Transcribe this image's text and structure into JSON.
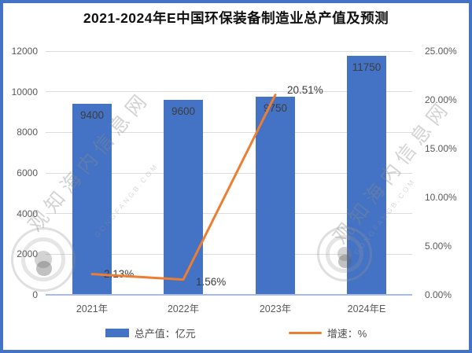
{
  "watermark": {
    "text": "观知海内信息网",
    "subtext": "GONGFANGB.COM"
  },
  "frame_color": "#4472C4",
  "chart_data": {
    "type": "bar+line combo",
    "title": "2021-2024年E中国环保装备制造业总产值及预测",
    "categories": [
      "2021年",
      "2022年",
      "2023年",
      "2024年E"
    ],
    "series": [
      {
        "name": "总产值：亿元",
        "type": "bar",
        "axis": "left",
        "color": "#4472C4",
        "values": [
          9400,
          9600,
          9750,
          11750
        ],
        "labels": [
          "9400",
          "9600",
          "9750",
          "11750"
        ]
      },
      {
        "name": "增速：%",
        "type": "line",
        "axis": "right",
        "color": "#ED7D31",
        "values": [
          2.13,
          1.56,
          20.51,
          null
        ],
        "labels": [
          "2.13%",
          "1.56%",
          "20.51%"
        ]
      }
    ],
    "left_axis": {
      "min": 0,
      "max": 12000,
      "step": 2000,
      "ticks": [
        "0",
        "2000",
        "4000",
        "6000",
        "8000",
        "10000",
        "12000"
      ]
    },
    "right_axis": {
      "min": 0,
      "max": 25,
      "step": 5,
      "ticks": [
        "0.00%",
        "5.00%",
        "10.00%",
        "15.00%",
        "20.00%",
        "25.00%"
      ]
    },
    "grid": true,
    "legend_position": "bottom"
  }
}
